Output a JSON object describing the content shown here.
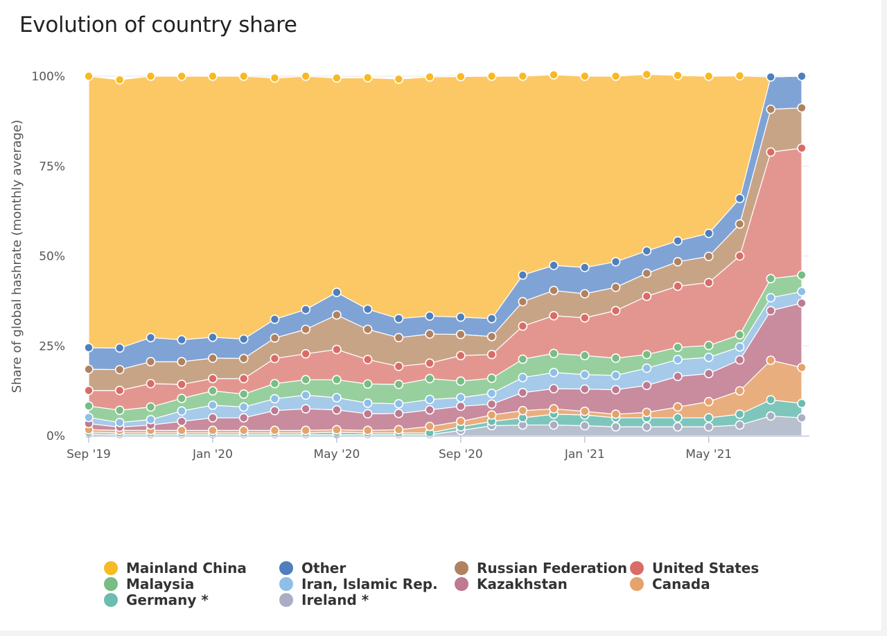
{
  "chart_data": {
    "type": "area",
    "stacked": true,
    "title": "Evolution of country share",
    "ylabel": "Share of global hashrate (monthly average)",
    "ylim": [
      0,
      100
    ],
    "y_ticks": [
      "0%",
      "25%",
      "50%",
      "75%",
      "100%"
    ],
    "x_tick_labels": [
      "Sep '19",
      "Jan '20",
      "May '20",
      "Sep '20",
      "Jan '21",
      "May '21"
    ],
    "x_tick_indices": [
      0,
      4,
      8,
      12,
      16,
      20
    ],
    "categories": [
      "2019-09",
      "2019-10",
      "2019-11",
      "2019-12",
      "2020-01",
      "2020-02",
      "2020-03",
      "2020-04",
      "2020-05",
      "2020-06",
      "2020-07",
      "2020-08",
      "2020-09",
      "2020-10",
      "2020-11",
      "2020-12",
      "2021-01",
      "2021-02",
      "2021-03",
      "2021-04",
      "2021-05",
      "2021-06",
      "2021-07",
      "2021-08"
    ],
    "legend_position": "bottom",
    "series": [
      {
        "name": "Ireland *",
        "color": "#b8bfcf",
        "values": [
          0.5,
          0.3,
          0.3,
          0.3,
          0.3,
          0.3,
          0.3,
          0.3,
          0.3,
          0.3,
          0.3,
          0.3,
          1.5,
          2.8,
          3.0,
          3.0,
          2.8,
          2.5,
          2.5,
          2.5,
          2.5,
          3.0,
          5.5,
          5.0
        ]
      },
      {
        "name": "Germany *",
        "color": "#7ec6bb",
        "values": [
          0.5,
          0.5,
          0.5,
          0.5,
          0.5,
          0.5,
          0.5,
          0.5,
          0.7,
          0.5,
          0.5,
          0.5,
          1.0,
          1.2,
          2.0,
          3.0,
          3.0,
          2.5,
          2.5,
          2.5,
          2.5,
          3.0,
          4.5,
          4.0
        ]
      },
      {
        "name": "Canada",
        "color": "#e9ae7e",
        "values": [
          0.7,
          0.7,
          0.7,
          0.7,
          0.7,
          0.7,
          0.7,
          0.7,
          0.7,
          0.7,
          0.9,
          1.8,
          1.5,
          1.8,
          2.0,
          1.5,
          1.0,
          1.0,
          1.5,
          3.0,
          4.5,
          6.5,
          11.0,
          10.0
        ]
      },
      {
        "name": "Kazakhstan",
        "color": "#c98b9e",
        "values": [
          1.7,
          0.9,
          1.5,
          2.5,
          3.5,
          3.5,
          5.5,
          6.0,
          5.5,
          4.6,
          4.5,
          4.6,
          4.2,
          3.0,
          5.0,
          5.6,
          6.2,
          6.8,
          7.5,
          8.5,
          7.8,
          8.6,
          13.8,
          17.9
        ]
      },
      {
        "name": "Iran, Islamic Rep.",
        "color": "#a6cae9",
        "values": [
          1.7,
          1.3,
          1.5,
          2.9,
          3.5,
          3.0,
          3.3,
          3.8,
          3.4,
          3.0,
          2.7,
          2.9,
          2.4,
          3.0,
          4.2,
          4.5,
          4.0,
          4.0,
          4.8,
          4.7,
          4.5,
          3.6,
          3.6,
          3.2
        ]
      },
      {
        "name": "Malaysia",
        "color": "#98cf9f",
        "values": [
          3.2,
          3.4,
          3.5,
          3.5,
          4.0,
          3.6,
          4.2,
          4.3,
          5.0,
          5.3,
          5.4,
          5.8,
          4.6,
          4.2,
          5.1,
          5.3,
          5.3,
          4.8,
          3.8,
          3.4,
          3.3,
          3.4,
          5.3,
          4.6
        ]
      },
      {
        "name": "United States",
        "color": "#e3968f",
        "values": [
          4.3,
          5.5,
          6.5,
          3.9,
          3.4,
          4.3,
          7.0,
          7.2,
          8.4,
          6.8,
          5.0,
          4.3,
          7.1,
          6.6,
          9.2,
          10.5,
          10.5,
          13.2,
          16.2,
          17.0,
          17.5,
          21.9,
          35.2,
          35.3
        ]
      },
      {
        "name": "Russian Federation",
        "color": "#c8a487",
        "values": [
          5.9,
          5.8,
          6.1,
          6.3,
          5.7,
          5.6,
          5.7,
          6.8,
          9.6,
          8.4,
          8.0,
          8.1,
          5.9,
          5.0,
          6.8,
          7.0,
          6.7,
          6.5,
          6.4,
          6.8,
          7.3,
          8.9,
          11.9,
          11.2
        ]
      },
      {
        "name": "Other",
        "color": "#7fa3d5",
        "values": [
          6.0,
          6.0,
          6.7,
          6.1,
          5.8,
          5.4,
          5.2,
          5.5,
          6.3,
          5.6,
          5.3,
          5.0,
          4.8,
          5.0,
          7.4,
          7.0,
          7.3,
          7.1,
          6.2,
          5.8,
          6.4,
          7.1,
          9.0,
          8.8
        ]
      },
      {
        "name": "Mainland China",
        "color": "#fcc865",
        "values": [
          75.5,
          74.6,
          72.7,
          73.3,
          72.6,
          73.1,
          67.1,
          64.9,
          59.6,
          64.4,
          66.6,
          66.5,
          66.9,
          67.4,
          55.3,
          53.0,
          53.2,
          51.6,
          49.1,
          46.0,
          43.7,
          34.1,
          0,
          0
        ]
      }
    ]
  },
  "legend": [
    {
      "label": "Mainland China",
      "color": "#f7b924"
    },
    {
      "label": "Other",
      "color": "#4f7fbd"
    },
    {
      "label": "Russian Federation",
      "color": "#b0825f"
    },
    {
      "label": "United States",
      "color": "#d96c66"
    },
    {
      "label": "Malaysia",
      "color": "#78bd84"
    },
    {
      "label": "Iran, Islamic Rep.",
      "color": "#8ebfe8"
    },
    {
      "label": "Kazakhstan",
      "color": "#bd7a90"
    },
    {
      "label": "Canada",
      "color": "#e5a26b"
    },
    {
      "label": "Germany *",
      "color": "#6bbdb0"
    },
    {
      "label": "Ireland *",
      "color": "#a9aec4"
    }
  ],
  "marker_colors": {
    "Mainland China": "#f7b924",
    "Other": "#4f7fbd",
    "Russian Federation": "#b0825f",
    "United States": "#d96c66",
    "Malaysia": "#78bd84",
    "Iran, Islamic Rep.": "#8ebfe8",
    "Kazakhstan": "#bd7a90",
    "Canada": "#e5a26b",
    "Germany *": "#6bbdb0",
    "Ireland *": "#a9aec4"
  }
}
